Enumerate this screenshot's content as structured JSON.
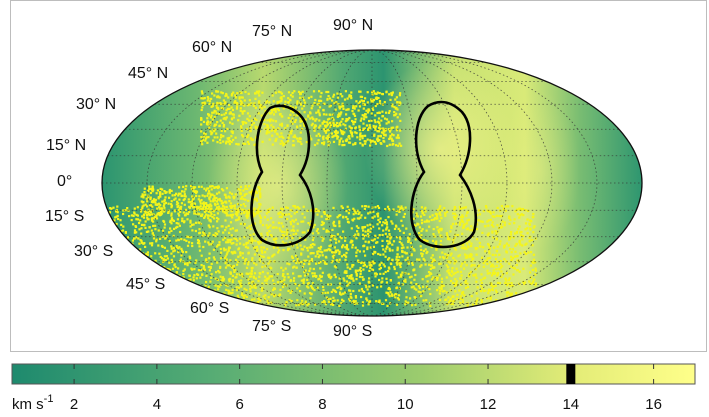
{
  "chart_data": {
    "type": "heatmap",
    "projection": "mollweide",
    "latitude_labels_left": [
      "60° N",
      "45° N",
      "30° N",
      "15° N",
      "0°",
      "15° S",
      "30° S",
      "45° S",
      "60° S"
    ],
    "latitude_labels_top": [
      "75° N",
      "90° N"
    ],
    "latitude_labels_bottom": [
      "75° S",
      "90° S"
    ],
    "colorbar": {
      "unit": "km s",
      "unit_exponent": "-1",
      "ticks": [
        2,
        4,
        6,
        8,
        10,
        12,
        14,
        16
      ],
      "range": [
        0.5,
        17
      ],
      "marker_value": 14,
      "colormap": [
        "#1e8a6e",
        "#58ad74",
        "#9ccc6e",
        "#e3ec77",
        "#ffff8a"
      ]
    },
    "grid": true,
    "overlays": [
      "yellow scattered points",
      "two black closed contours"
    ]
  }
}
